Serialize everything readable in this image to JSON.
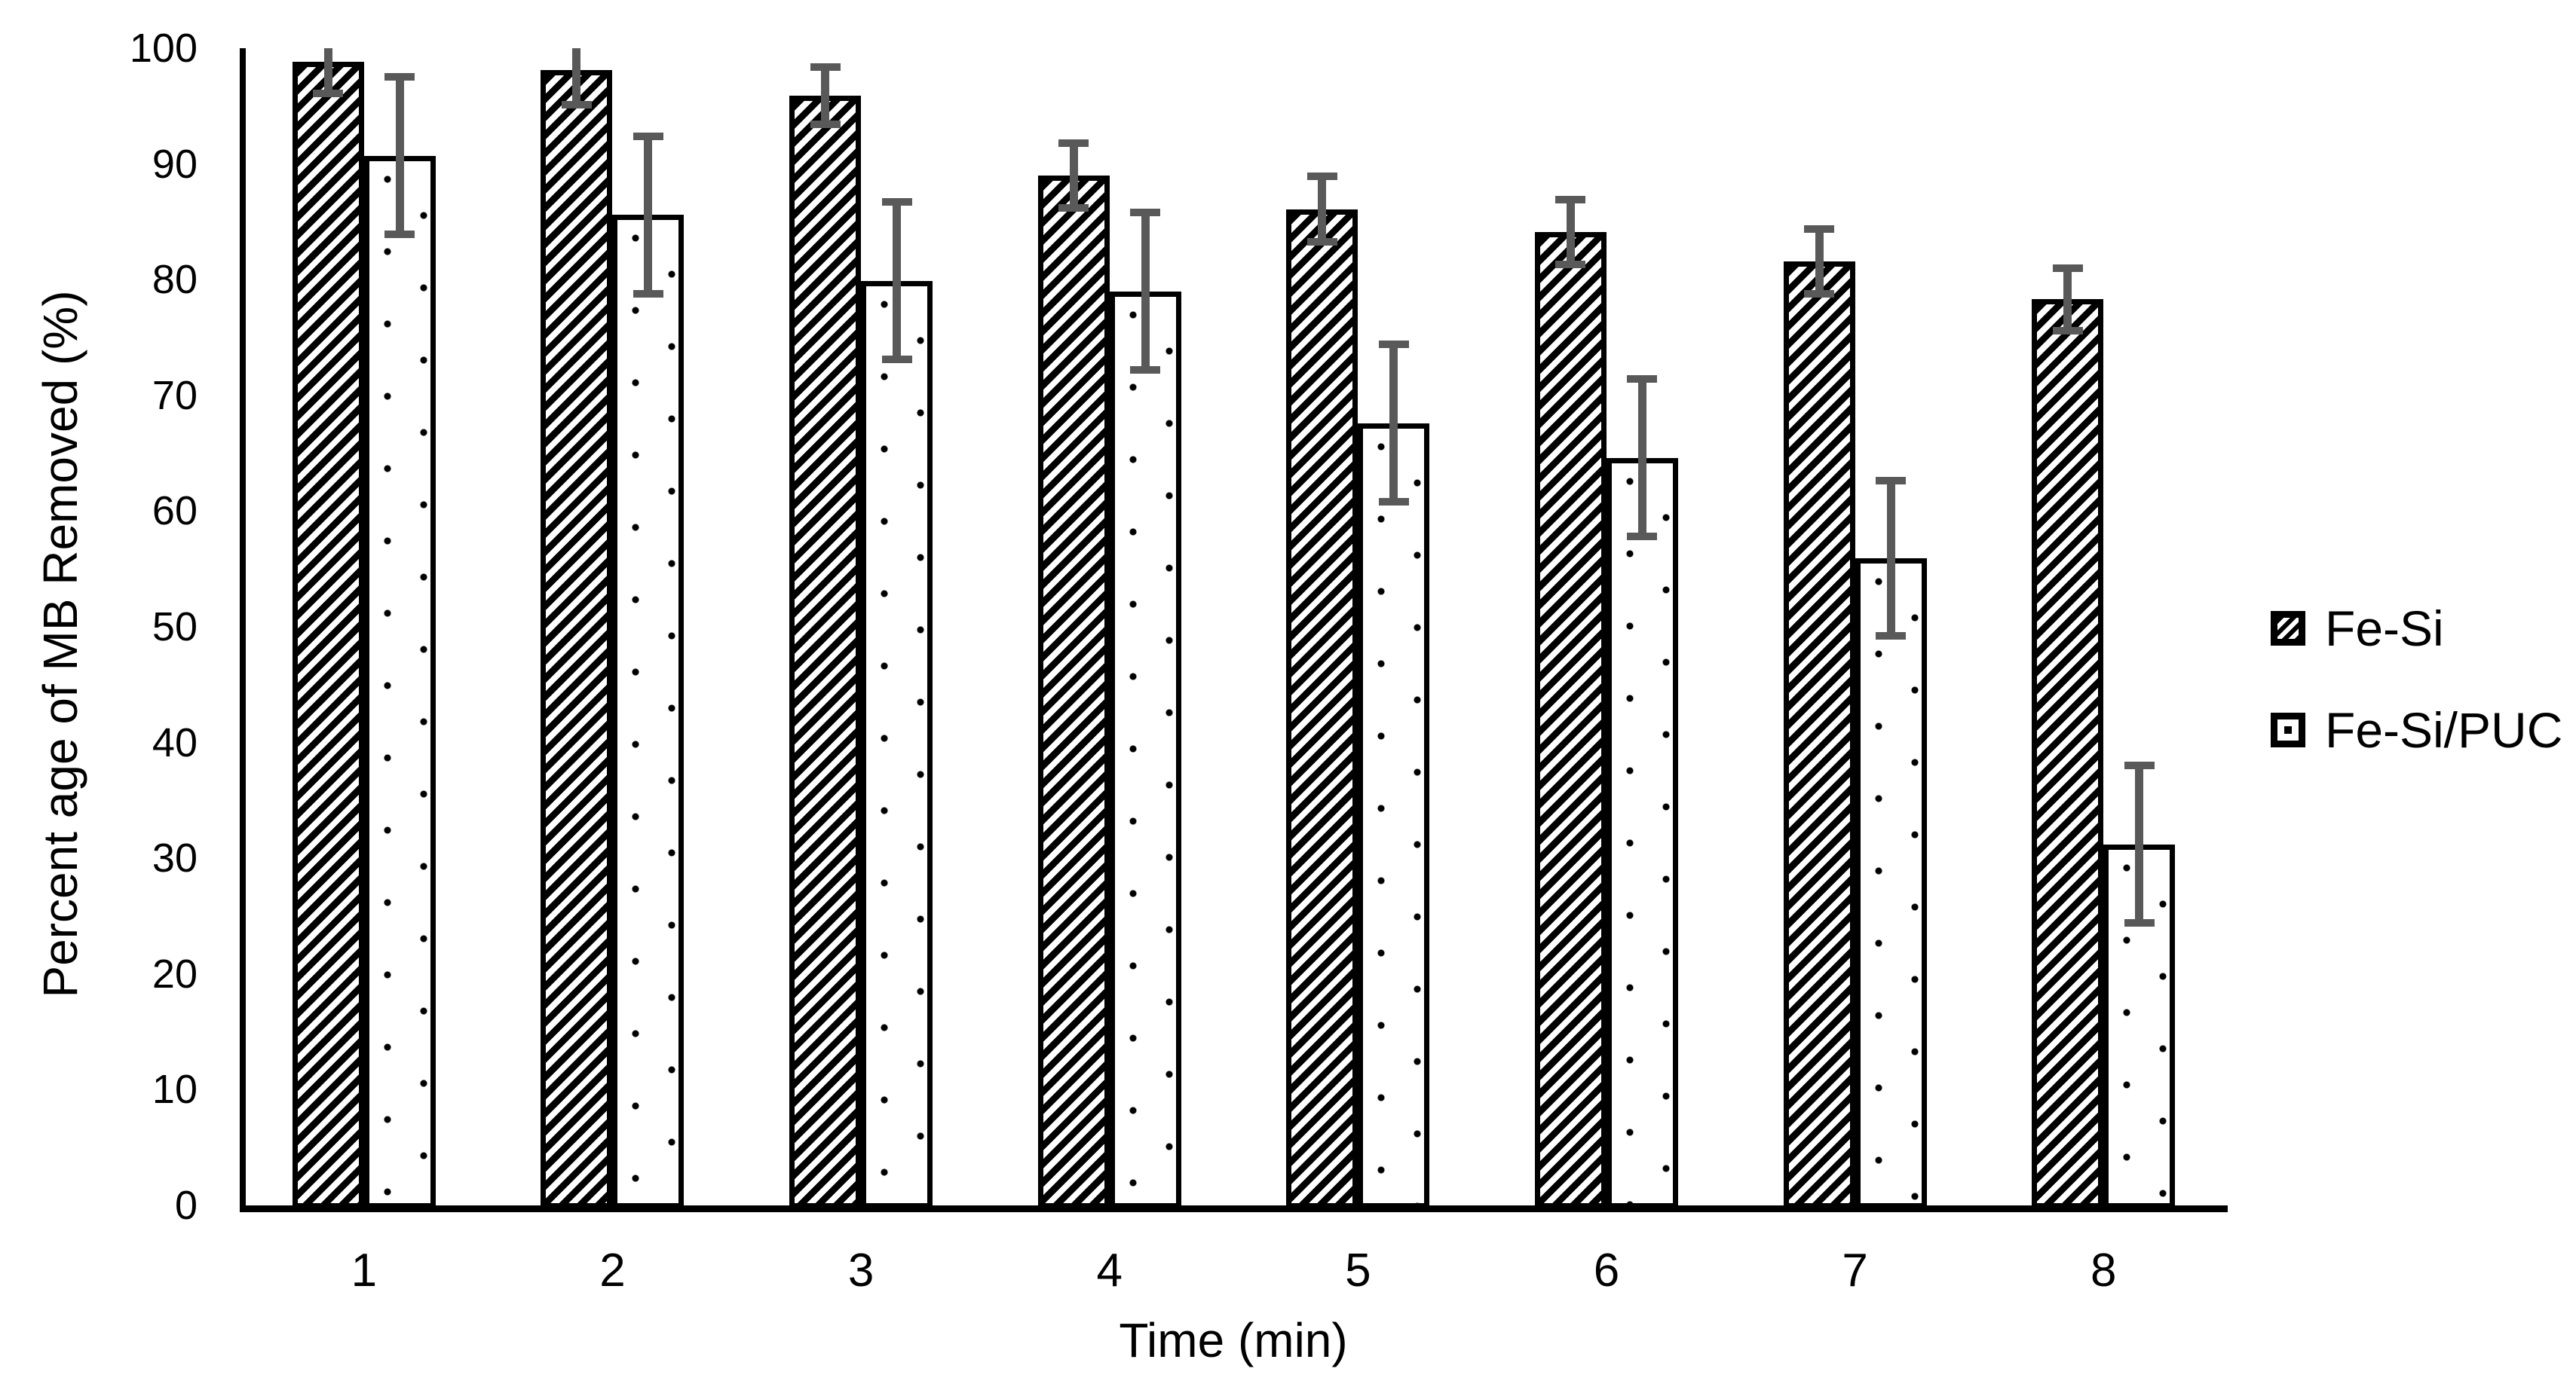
{
  "chart_data": {
    "type": "bar",
    "title": "",
    "xlabel": "Time (min)",
    "ylabel": "Percent age of MB Removed (%)",
    "categories": [
      "1",
      "2",
      "3",
      "4",
      "5",
      "6",
      "7",
      "8"
    ],
    "series": [
      {
        "name": "Fe-Si",
        "pattern": "diagonal-hatch",
        "values": [
          98.8,
          98.1,
          95.9,
          89.0,
          86.1,
          84.1,
          81.6,
          78.3
        ],
        "errors": [
          2.7,
          3.0,
          2.5,
          2.8,
          2.8,
          2.8,
          2.8,
          2.7
        ]
      },
      {
        "name": "Fe-Si/PUC",
        "pattern": "dots",
        "values": [
          90.7,
          85.6,
          79.9,
          79.0,
          67.6,
          64.6,
          55.9,
          31.2
        ],
        "errors": [
          6.8,
          6.8,
          6.8,
          6.8,
          6.8,
          6.8,
          6.7,
          6.8
        ]
      }
    ],
    "ylim": [
      0,
      100
    ],
    "ytick_step": 10,
    "yticks": [
      "0",
      "10",
      "20",
      "30",
      "40",
      "50",
      "60",
      "70",
      "80",
      "90",
      "100"
    ],
    "grid": false,
    "legend_position": "right",
    "colors": {
      "bar_outline": "#000000",
      "error_bar": "#595959",
      "text": "#000000",
      "background": "#ffffff"
    }
  }
}
